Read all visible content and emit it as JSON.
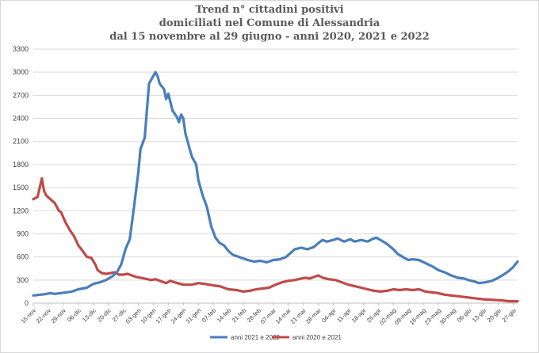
{
  "chart_data": {
    "type": "line",
    "title_lines": [
      "Trend n° cittadini positivi",
      "domiciliati nel Comune di Alessandria",
      "dal 15 novembre al 29 giugno - anni 2020, 2021 e 2022"
    ],
    "ylim": [
      0,
      3300
    ],
    "yticks": [
      0,
      300,
      600,
      900,
      1200,
      1500,
      1800,
      2100,
      2400,
      2700,
      3000,
      3300
    ],
    "grid": true,
    "legend_position": "bottom",
    "x_day_range": [
      0,
      226
    ],
    "x_ticks": [
      {
        "day": 0,
        "label": "15-nov"
      },
      {
        "day": 7,
        "label": "22-nov"
      },
      {
        "day": 14,
        "label": "29-nov"
      },
      {
        "day": 21,
        "label": "06-dic"
      },
      {
        "day": 28,
        "label": "13-dic"
      },
      {
        "day": 35,
        "label": "20-dic"
      },
      {
        "day": 42,
        "label": "27-dic"
      },
      {
        "day": 49,
        "label": "03-gen"
      },
      {
        "day": 56,
        "label": "10-gen"
      },
      {
        "day": 63,
        "label": "17-gen"
      },
      {
        "day": 70,
        "label": "24-gen"
      },
      {
        "day": 77,
        "label": "31-gen"
      },
      {
        "day": 84,
        "label": "07-feb"
      },
      {
        "day": 91,
        "label": "14-feb"
      },
      {
        "day": 98,
        "label": "21-feb"
      },
      {
        "day": 105,
        "label": "28-feb"
      },
      {
        "day": 112,
        "label": "07-mar"
      },
      {
        "day": 119,
        "label": "14-mar"
      },
      {
        "day": 126,
        "label": "21-mar"
      },
      {
        "day": 133,
        "label": "28-mar"
      },
      {
        "day": 140,
        "label": "04-apr"
      },
      {
        "day": 147,
        "label": "11-apr"
      },
      {
        "day": 154,
        "label": "18-apr"
      },
      {
        "day": 161,
        "label": "25-apr"
      },
      {
        "day": 168,
        "label": "02-mag"
      },
      {
        "day": 175,
        "label": "09-mag"
      },
      {
        "day": 182,
        "label": "16-mag"
      },
      {
        "day": 189,
        "label": "23-mag"
      },
      {
        "day": 196,
        "label": "30-mag"
      },
      {
        "day": 203,
        "label": "06-giu"
      },
      {
        "day": 210,
        "label": "13-giu"
      },
      {
        "day": 217,
        "label": "20-giu"
      },
      {
        "day": 224,
        "label": "27-giu"
      }
    ],
    "series": [
      {
        "name": "anni 2021 e 2022",
        "color": "#4a7ebb",
        "points": [
          [
            0,
            100
          ],
          [
            5,
            115
          ],
          [
            8,
            130
          ],
          [
            10,
            120
          ],
          [
            14,
            135
          ],
          [
            18,
            150
          ],
          [
            21,
            180
          ],
          [
            25,
            200
          ],
          [
            28,
            250
          ],
          [
            31,
            270
          ],
          [
            34,
            300
          ],
          [
            37,
            350
          ],
          [
            39,
            400
          ],
          [
            41,
            500
          ],
          [
            43,
            700
          ],
          [
            45,
            830
          ],
          [
            47,
            1250
          ],
          [
            49,
            1700
          ],
          [
            50,
            2000
          ],
          [
            52,
            2150
          ],
          [
            53,
            2500
          ],
          [
            54,
            2850
          ],
          [
            56,
            2950
          ],
          [
            57,
            3000
          ],
          [
            58,
            2950
          ],
          [
            59,
            2850
          ],
          [
            61,
            2780
          ],
          [
            62,
            2650
          ],
          [
            63,
            2720
          ],
          [
            65,
            2500
          ],
          [
            67,
            2420
          ],
          [
            68,
            2350
          ],
          [
            69,
            2450
          ],
          [
            70,
            2400
          ],
          [
            71,
            2200
          ],
          [
            72,
            2100
          ],
          [
            74,
            1900
          ],
          [
            76,
            1800
          ],
          [
            77,
            1600
          ],
          [
            79,
            1400
          ],
          [
            81,
            1250
          ],
          [
            83,
            1000
          ],
          [
            85,
            850
          ],
          [
            87,
            780
          ],
          [
            89,
            750
          ],
          [
            91,
            680
          ],
          [
            93,
            630
          ],
          [
            96,
            600
          ],
          [
            100,
            560
          ],
          [
            103,
            540
          ],
          [
            106,
            550
          ],
          [
            109,
            530
          ],
          [
            112,
            560
          ],
          [
            115,
            570
          ],
          [
            118,
            600
          ],
          [
            120,
            650
          ],
          [
            122,
            700
          ],
          [
            125,
            720
          ],
          [
            128,
            700
          ],
          [
            131,
            730
          ],
          [
            133,
            780
          ],
          [
            135,
            820
          ],
          [
            137,
            800
          ],
          [
            140,
            820
          ],
          [
            142,
            840
          ],
          [
            145,
            800
          ],
          [
            148,
            830
          ],
          [
            150,
            800
          ],
          [
            153,
            820
          ],
          [
            156,
            800
          ],
          [
            158,
            830
          ],
          [
            160,
            850
          ],
          [
            162,
            820
          ],
          [
            165,
            770
          ],
          [
            168,
            700
          ],
          [
            170,
            640
          ],
          [
            173,
            590
          ],
          [
            175,
            560
          ],
          [
            177,
            570
          ],
          [
            180,
            560
          ],
          [
            183,
            520
          ],
          [
            186,
            480
          ],
          [
            189,
            430
          ],
          [
            192,
            400
          ],
          [
            195,
            360
          ],
          [
            198,
            330
          ],
          [
            201,
            320
          ],
          [
            203,
            300
          ],
          [
            206,
            280
          ],
          [
            208,
            260
          ],
          [
            211,
            270
          ],
          [
            214,
            290
          ],
          [
            217,
            330
          ],
          [
            220,
            380
          ],
          [
            222,
            420
          ],
          [
            224,
            470
          ],
          [
            226,
            540
          ]
        ]
      },
      {
        "name": "anni 2020 e 2021",
        "color": "#be4b48",
        "points": [
          [
            0,
            1350
          ],
          [
            2,
            1380
          ],
          [
            3,
            1500
          ],
          [
            4,
            1620
          ],
          [
            5,
            1460
          ],
          [
            6,
            1400
          ],
          [
            8,
            1350
          ],
          [
            10,
            1300
          ],
          [
            12,
            1200
          ],
          [
            13,
            1180
          ],
          [
            15,
            1050
          ],
          [
            17,
            950
          ],
          [
            19,
            870
          ],
          [
            21,
            750
          ],
          [
            23,
            680
          ],
          [
            25,
            600
          ],
          [
            27,
            590
          ],
          [
            29,
            500
          ],
          [
            30,
            430
          ],
          [
            32,
            390
          ],
          [
            34,
            380
          ],
          [
            36,
            390
          ],
          [
            38,
            400
          ],
          [
            40,
            370
          ],
          [
            42,
            370
          ],
          [
            44,
            380
          ],
          [
            46,
            360
          ],
          [
            48,
            340
          ],
          [
            50,
            330
          ],
          [
            52,
            320
          ],
          [
            55,
            300
          ],
          [
            57,
            310
          ],
          [
            59,
            290
          ],
          [
            62,
            260
          ],
          [
            64,
            290
          ],
          [
            66,
            270
          ],
          [
            70,
            240
          ],
          [
            74,
            240
          ],
          [
            77,
            260
          ],
          [
            80,
            250
          ],
          [
            84,
            230
          ],
          [
            87,
            220
          ],
          [
            91,
            180
          ],
          [
            95,
            170
          ],
          [
            98,
            150
          ],
          [
            101,
            160
          ],
          [
            104,
            180
          ],
          [
            107,
            190
          ],
          [
            110,
            200
          ],
          [
            113,
            240
          ],
          [
            116,
            270
          ],
          [
            119,
            290
          ],
          [
            122,
            300
          ],
          [
            125,
            320
          ],
          [
            127,
            330
          ],
          [
            129,
            320
          ],
          [
            131,
            340
          ],
          [
            133,
            360
          ],
          [
            135,
            330
          ],
          [
            138,
            310
          ],
          [
            141,
            300
          ],
          [
            144,
            270
          ],
          [
            147,
            240
          ],
          [
            150,
            220
          ],
          [
            153,
            200
          ],
          [
            156,
            180
          ],
          [
            159,
            160
          ],
          [
            162,
            150
          ],
          [
            165,
            160
          ],
          [
            168,
            180
          ],
          [
            171,
            170
          ],
          [
            174,
            180
          ],
          [
            177,
            170
          ],
          [
            180,
            180
          ],
          [
            183,
            150
          ],
          [
            186,
            140
          ],
          [
            189,
            130
          ],
          [
            192,
            110
          ],
          [
            195,
            100
          ],
          [
            198,
            90
          ],
          [
            201,
            80
          ],
          [
            204,
            70
          ],
          [
            207,
            60
          ],
          [
            210,
            50
          ],
          [
            213,
            45
          ],
          [
            216,
            40
          ],
          [
            219,
            35
          ],
          [
            222,
            25
          ],
          [
            226,
            25
          ]
        ]
      }
    ]
  }
}
